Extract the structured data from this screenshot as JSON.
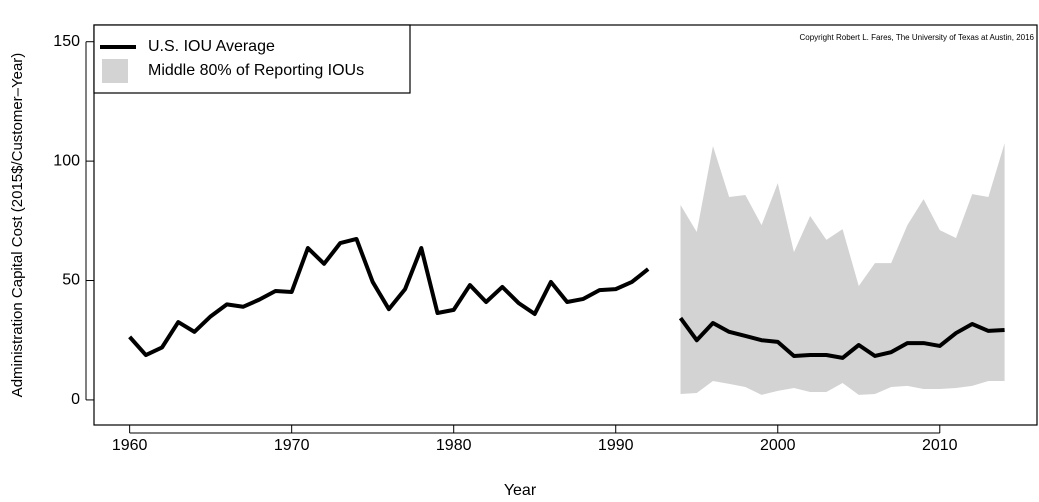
{
  "chart_data": {
    "type": "line",
    "x_label": "Year",
    "y_label": "Administration Capital Cost (2015$/Customer–Year)",
    "annotation": "Copyright Robert L. Fares, The University of Texas at Austin, 2016",
    "x": [
      1960,
      1961,
      1962,
      1963,
      1964,
      1965,
      1966,
      1967,
      1968,
      1969,
      1970,
      1971,
      1972,
      1973,
      1974,
      1975,
      1976,
      1977,
      1978,
      1979,
      1980,
      1981,
      1982,
      1983,
      1984,
      1985,
      1986,
      1987,
      1988,
      1989,
      1990,
      1991,
      1992,
      1993,
      1994,
      1995,
      1996,
      1997,
      1998,
      1999,
      2000,
      2001,
      2002,
      2003,
      2004,
      2005,
      2006,
      2007,
      2008,
      2009,
      2010,
      2011,
      2012,
      2013,
      2014
    ],
    "series": [
      {
        "name": "U.S. IOU Average",
        "color": "#000000",
        "values": [
          26.4,
          18.8,
          22,
          32.6,
          28.5,
          35,
          40,
          39,
          42,
          45.6,
          45.2,
          63.6,
          57,
          65.7,
          67.4,
          49.4,
          38,
          46.4,
          63.6,
          36.4,
          37.7,
          48.1,
          41,
          47.3,
          40.6,
          36,
          49.4,
          41,
          42.3,
          46,
          46.4,
          49.4,
          54.8,
          null,
          34.3,
          25,
          32.2,
          28.5,
          26.8,
          25,
          24.3,
          18.4,
          18.8,
          18.8,
          17.6,
          23,
          18.4,
          20,
          23.8,
          23.8,
          22.6,
          28,
          31.8,
          28.9,
          29.3
        ]
      },
      {
        "name": "Middle 80% of Reporting IOUs",
        "color": "#d3d3d3",
        "lower": [
          null,
          null,
          null,
          null,
          null,
          null,
          null,
          null,
          null,
          null,
          null,
          null,
          null,
          null,
          null,
          null,
          null,
          null,
          null,
          null,
          null,
          null,
          null,
          null,
          null,
          null,
          null,
          null,
          null,
          null,
          null,
          null,
          null,
          null,
          2.5,
          2.9,
          7.9,
          6.7,
          5.4,
          2.1,
          3.8,
          5,
          3.3,
          3.3,
          7.1,
          2.1,
          2.5,
          5.4,
          5.9,
          4.6,
          4.6,
          5,
          5.9,
          7.9,
          7.9
        ],
        "upper": [
          null,
          null,
          null,
          null,
          null,
          null,
          null,
          null,
          null,
          null,
          null,
          null,
          null,
          null,
          null,
          null,
          null,
          null,
          null,
          null,
          null,
          null,
          null,
          null,
          null,
          null,
          null,
          null,
          null,
          null,
          null,
          null,
          null,
          null,
          81.6,
          70.3,
          106.3,
          85,
          85.8,
          73.2,
          90.8,
          61.9,
          77,
          67,
          71.5,
          47.7,
          57.3,
          57.3,
          73.2,
          84.1,
          71.1,
          67.8,
          86.2,
          85,
          107.5
        ]
      }
    ],
    "xlim": [
      1957.8,
      2016
    ],
    "xticks": [
      1960,
      1970,
      1980,
      1990,
      2000,
      2010
    ],
    "ylim": [
      -10.5,
      157
    ],
    "yticks": [
      0,
      50,
      100,
      150
    ],
    "legend": "top-left"
  }
}
